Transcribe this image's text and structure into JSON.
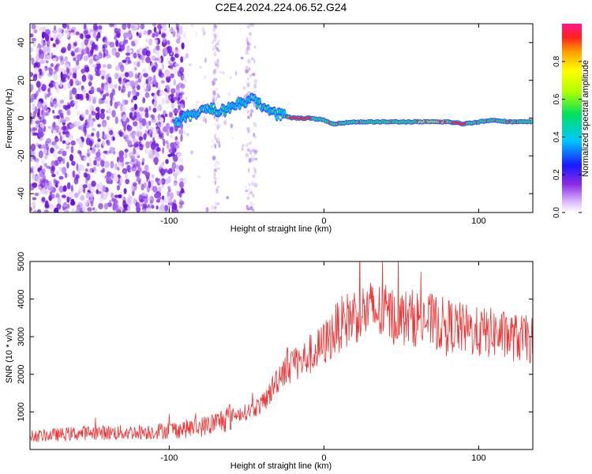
{
  "title": "C2E4.2024.224.06.52.G24",
  "chart_data": [
    {
      "type": "heatmap",
      "xlabel": "Height of straight line (km)",
      "ylabel": "Frequency (Hz)",
      "xlim": [
        -190,
        135
      ],
      "ylim": [
        -50,
        50
      ],
      "xticks": [
        -100,
        0,
        100
      ],
      "yticks": [
        -40,
        -20,
        0,
        20,
        40
      ],
      "colorbar": {
        "label": "Normalized spectral amplitude",
        "range": [
          0,
          1
        ],
        "ticks": [
          0.0,
          0.2,
          0.4,
          0.6,
          0.8
        ]
      },
      "ridge": {
        "x": [
          -95,
          -85,
          -75,
          -65,
          -55,
          -45,
          -40,
          -35,
          -30,
          -25,
          -20,
          -10,
          0,
          5,
          20,
          40,
          60,
          80,
          90,
          100,
          110,
          120,
          135
        ],
        "y": [
          -2,
          2,
          5,
          4,
          8,
          10,
          6,
          3,
          2,
          1,
          0,
          0,
          -1,
          -3,
          -2,
          -2,
          -2,
          -2,
          -3,
          -2,
          -1,
          -2,
          -2
        ]
      }
    },
    {
      "type": "line",
      "xlabel": "Height of straight line (km)",
      "ylabel": "SNR (10 * v/v)",
      "xlim": [
        -190,
        135
      ],
      "ylim": [
        0,
        5000
      ],
      "xticks": [
        -100,
        0,
        100
      ],
      "yticks": [
        1000,
        2000,
        3000,
        4000,
        5000
      ],
      "series": [
        {
          "color": "#ee3333",
          "x": [
            -190,
            -170,
            -150,
            -130,
            -110,
            -100,
            -90,
            -80,
            -70,
            -60,
            -50,
            -40,
            -35,
            -30,
            -25,
            -20,
            -15,
            -10,
            -5,
            0,
            10,
            20,
            30,
            40,
            50,
            60,
            70,
            80,
            90,
            100,
            110,
            120,
            135
          ],
          "y": [
            350,
            400,
            450,
            450,
            480,
            520,
            550,
            600,
            700,
            900,
            1000,
            1200,
            1500,
            1900,
            2200,
            2400,
            2300,
            2500,
            2600,
            2800,
            3300,
            3600,
            3700,
            3600,
            3500,
            3500,
            3400,
            3300,
            3200,
            3100,
            3100,
            3000,
            2900
          ]
        }
      ]
    }
  ]
}
